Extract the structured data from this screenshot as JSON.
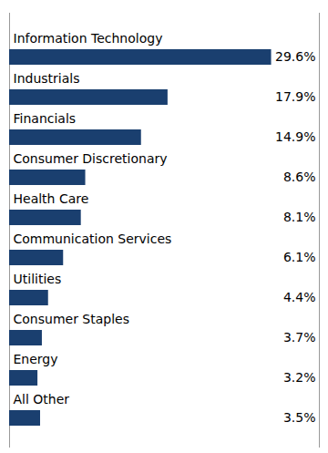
{
  "chart_data": {
    "type": "bar",
    "orientation": "horizontal",
    "categories": [
      "Information Technology",
      "Industrials",
      "Financials",
      "Consumer Discretionary",
      "Health Care",
      "Communication Services",
      "Utilities",
      "Consumer Staples",
      "Energy",
      "All Other"
    ],
    "values": [
      29.6,
      17.9,
      14.9,
      8.6,
      8.1,
      6.1,
      4.4,
      3.7,
      3.2,
      3.5
    ],
    "value_labels": [
      "29.6%",
      "17.9%",
      "14.9%",
      "8.6%",
      "8.1%",
      "6.1%",
      "4.4%",
      "3.7%",
      "3.2%",
      "3.5%"
    ],
    "color": "#1a3f6f",
    "xlim": [
      0,
      35
    ],
    "data_labels": true,
    "tick_labels": false,
    "grid": false
  }
}
